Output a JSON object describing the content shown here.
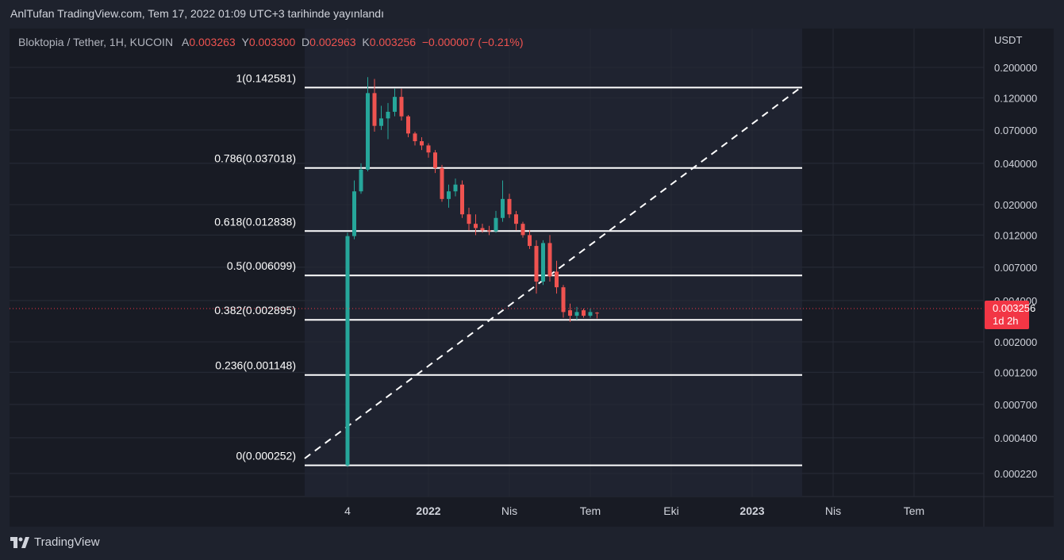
{
  "header": {
    "publish_line": "AnlTufan TradingView.com, Tem 17, 2022 01:09 UTC+3 tarihinde yayınlandı"
  },
  "legend": {
    "symbol": "Bloktopia / Tether, 1H, KUCOIN",
    "open_label": "A",
    "open_value": "0.003263",
    "high_label": "Y",
    "high_value": "0.003300",
    "low_label": "D",
    "low_value": "0.002963",
    "close_label": "K",
    "close_value": "0.003256",
    "change": "−0.000007 (−0.21%)"
  },
  "price_axis": {
    "unit": "USDT",
    "ticks": [
      "0.200000",
      "0.120000",
      "0.070000",
      "0.040000",
      "0.020000",
      "0.012000",
      "0.007000",
      "0.004000",
      "0.002000",
      "0.001200",
      "0.000700",
      "0.000400",
      "0.000220"
    ]
  },
  "current_price": {
    "value": "0.003256",
    "countdown": "1d 2h",
    "color": "#f23645"
  },
  "footer": {
    "brand": "TradingView"
  },
  "colors": {
    "up": "#26a69a",
    "down": "#ef5350",
    "fib_line": "#ffffff",
    "background": "#1e222d",
    "panel": "#181b24"
  },
  "chart_data": {
    "type": "candlestick",
    "title": "Bloktopia / Tether, 1H, KUCOIN",
    "y_scale": "log",
    "ylim": [
      0.00017,
      0.26
    ],
    "x_ticks": [
      "4",
      "2022",
      "Nis",
      "Tem",
      "Eki",
      "2023",
      "Nis",
      "Tem"
    ],
    "fib_levels": [
      {
        "label": "1(0.142581)",
        "ratio": 1,
        "price": 0.142581
      },
      {
        "label": "0.786(0.037018)",
        "ratio": 0.786,
        "price": 0.037018
      },
      {
        "label": "0.618(0.012838)",
        "ratio": 0.618,
        "price": 0.012838
      },
      {
        "label": "0.5(0.006099)",
        "ratio": 0.5,
        "price": 0.006099
      },
      {
        "label": "0.382(0.002895)",
        "ratio": 0.382,
        "price": 0.002895
      },
      {
        "label": "0.236(0.001148)",
        "ratio": 0.236,
        "price": 0.001148
      },
      {
        "label": "0(0.000252)",
        "ratio": 0,
        "price": 0.000252
      }
    ],
    "candles": [
      {
        "o": 0.000252,
        "h": 0.0125,
        "l": 0.000245,
        "c": 0.0118
      },
      {
        "o": 0.0118,
        "h": 0.03,
        "l": 0.0112,
        "c": 0.025
      },
      {
        "o": 0.025,
        "h": 0.04,
        "l": 0.024,
        "c": 0.036
      },
      {
        "o": 0.036,
        "h": 0.17,
        "l": 0.035,
        "c": 0.13
      },
      {
        "o": 0.13,
        "h": 0.165,
        "l": 0.068,
        "c": 0.075
      },
      {
        "o": 0.075,
        "h": 0.105,
        "l": 0.07,
        "c": 0.085
      },
      {
        "o": 0.085,
        "h": 0.11,
        "l": 0.06,
        "c": 0.095
      },
      {
        "o": 0.095,
        "h": 0.14,
        "l": 0.088,
        "c": 0.122
      },
      {
        "o": 0.122,
        "h": 0.14,
        "l": 0.082,
        "c": 0.088
      },
      {
        "o": 0.088,
        "h": 0.09,
        "l": 0.062,
        "c": 0.066
      },
      {
        "o": 0.066,
        "h": 0.068,
        "l": 0.054,
        "c": 0.058
      },
      {
        "o": 0.058,
        "h": 0.062,
        "l": 0.05,
        "c": 0.054
      },
      {
        "o": 0.054,
        "h": 0.056,
        "l": 0.044,
        "c": 0.048
      },
      {
        "o": 0.048,
        "h": 0.05,
        "l": 0.034,
        "c": 0.037
      },
      {
        "o": 0.037,
        "h": 0.039,
        "l": 0.021,
        "c": 0.022
      },
      {
        "o": 0.022,
        "h": 0.028,
        "l": 0.019,
        "c": 0.025
      },
      {
        "o": 0.025,
        "h": 0.031,
        "l": 0.023,
        "c": 0.028
      },
      {
        "o": 0.028,
        "h": 0.03,
        "l": 0.016,
        "c": 0.017
      },
      {
        "o": 0.017,
        "h": 0.019,
        "l": 0.013,
        "c": 0.0145
      },
      {
        "o": 0.0145,
        "h": 0.017,
        "l": 0.012,
        "c": 0.0135
      },
      {
        "o": 0.0135,
        "h": 0.0145,
        "l": 0.0125,
        "c": 0.013
      },
      {
        "o": 0.013,
        "h": 0.014,
        "l": 0.012,
        "c": 0.0128
      },
      {
        "o": 0.0128,
        "h": 0.018,
        "l": 0.0125,
        "c": 0.016
      },
      {
        "o": 0.016,
        "h": 0.03,
        "l": 0.015,
        "c": 0.022
      },
      {
        "o": 0.022,
        "h": 0.024,
        "l": 0.016,
        "c": 0.017
      },
      {
        "o": 0.017,
        "h": 0.018,
        "l": 0.013,
        "c": 0.0145
      },
      {
        "o": 0.0145,
        "h": 0.015,
        "l": 0.0115,
        "c": 0.012
      },
      {
        "o": 0.012,
        "h": 0.013,
        "l": 0.0095,
        "c": 0.01
      },
      {
        "o": 0.01,
        "h": 0.011,
        "l": 0.0045,
        "c": 0.0055
      },
      {
        "o": 0.0055,
        "h": 0.011,
        "l": 0.0052,
        "c": 0.0105
      },
      {
        "o": 0.0105,
        "h": 0.012,
        "l": 0.0055,
        "c": 0.006
      },
      {
        "o": 0.0065,
        "h": 0.0078,
        "l": 0.0045,
        "c": 0.005
      },
      {
        "o": 0.005,
        "h": 0.0052,
        "l": 0.003,
        "c": 0.0033
      },
      {
        "o": 0.0034,
        "h": 0.0038,
        "l": 0.0028,
        "c": 0.0031
      },
      {
        "o": 0.0031,
        "h": 0.0036,
        "l": 0.0029,
        "c": 0.0033
      },
      {
        "o": 0.0034,
        "h": 0.0035,
        "l": 0.003,
        "c": 0.0031
      },
      {
        "o": 0.0031,
        "h": 0.0035,
        "l": 0.003,
        "c": 0.0033
      },
      {
        "o": 0.003263,
        "h": 0.0033,
        "l": 0.002963,
        "c": 0.003256
      }
    ]
  }
}
